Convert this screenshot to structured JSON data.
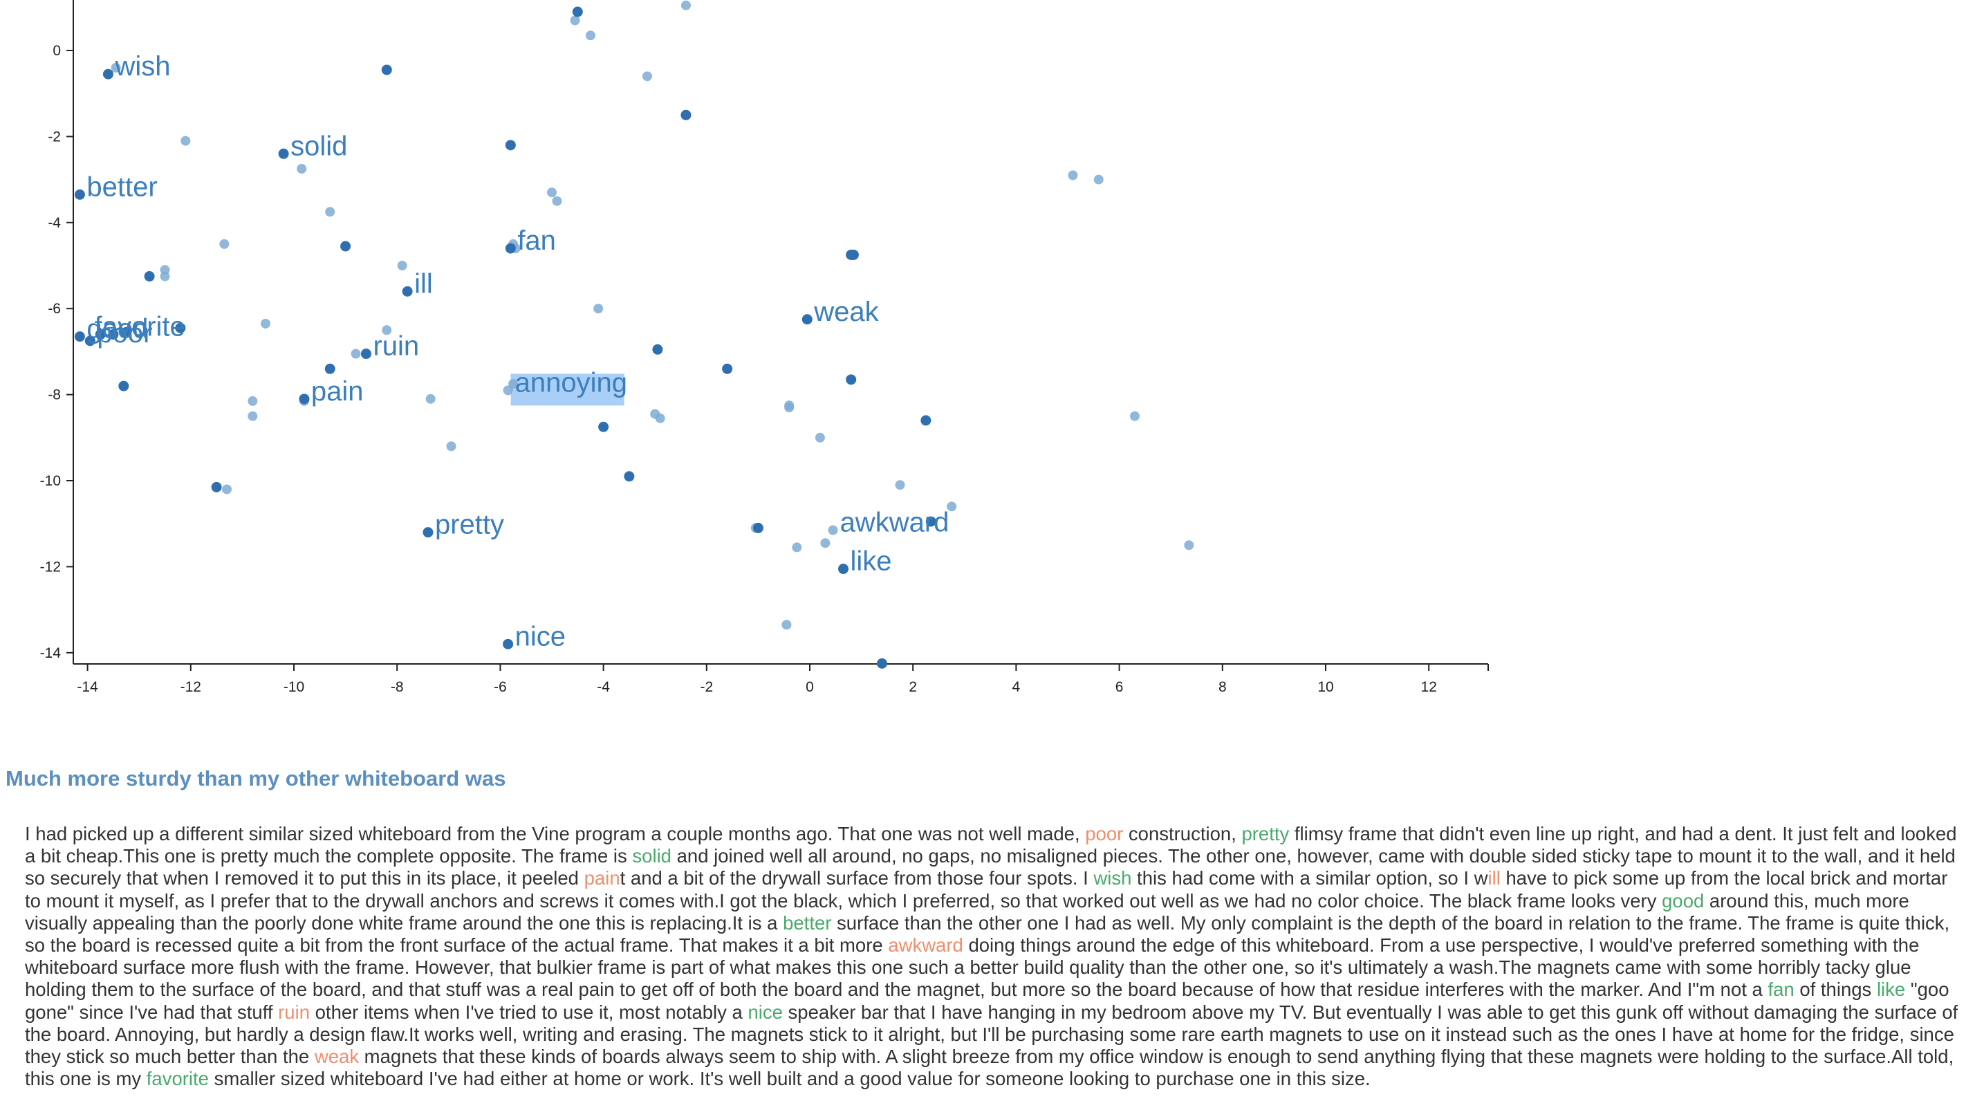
{
  "colors": {
    "point_dark": "#2f6fb0",
    "point_light": "#7eaad3",
    "label": "#3b7ebc",
    "highlight": "#a9cff6",
    "positive_word": "#4aa96b",
    "negative_word": "#f08e6c",
    "title": "#5b8fbf"
  },
  "chart_data": {
    "type": "scatter",
    "xlim": [
      -14.2,
      13.0
    ],
    "ylim": [
      -14.3,
      1.2
    ],
    "x_ticks": [
      -14,
      -12,
      -10,
      -8,
      -6,
      -4,
      -2,
      0,
      2,
      4,
      6,
      8,
      10,
      12
    ],
    "y_ticks": [
      0,
      -2,
      -4,
      -6,
      -8,
      -10,
      -12,
      -14
    ],
    "x_tick_labels": [
      "-14",
      "-12",
      "-10",
      "-8",
      "-6",
      "-4",
      "-2",
      "0",
      "2",
      "4",
      "6",
      "8",
      "10",
      "12"
    ],
    "y_tick_labels": [
      "0",
      "-2",
      "-4",
      "-6",
      "-8",
      "-10",
      "-12",
      "-14"
    ],
    "grid": false,
    "points_dark": [
      [
        -13.6,
        -0.55
      ],
      [
        -10.2,
        -2.4
      ],
      [
        -14.15,
        -3.35
      ],
      [
        -5.8,
        -2.2
      ],
      [
        -2.4,
        -1.5
      ],
      [
        -9.0,
        -4.55
      ],
      [
        -12.8,
        -5.25
      ],
      [
        -12.2,
        -6.45
      ],
      [
        -7.8,
        -5.6
      ],
      [
        -5.8,
        -4.6
      ],
      [
        -0.05,
        -6.25
      ],
      [
        0.85,
        -4.75
      ],
      [
        -9.3,
        -7.4
      ],
      [
        -8.6,
        -7.05
      ],
      [
        -9.8,
        -8.1
      ],
      [
        -13.3,
        -7.8
      ],
      [
        -7.4,
        -11.2
      ],
      [
        -11.5,
        -10.15
      ],
      [
        -3.5,
        -9.9
      ],
      [
        -4.0,
        -8.75
      ],
      [
        -2.95,
        -6.95
      ],
      [
        -1.6,
        -7.4
      ],
      [
        0.8,
        -7.65
      ],
      [
        2.25,
        -8.6
      ],
      [
        -1.0,
        -11.1
      ],
      [
        2.35,
        -10.95
      ],
      [
        0.65,
        -12.05
      ],
      [
        -5.85,
        -13.8
      ],
      [
        1.4,
        -14.25
      ],
      [
        -8.2,
        -0.45
      ],
      [
        -14.15,
        -6.65
      ],
      [
        -13.95,
        -6.75
      ],
      [
        -13.75,
        -6.6
      ],
      [
        -13.5,
        -6.6
      ],
      [
        -13.25,
        -6.55
      ],
      [
        -4.5,
        0.9
      ],
      [
        0.8,
        -4.75
      ]
    ],
    "points_light": [
      [
        -4.55,
        0.7
      ],
      [
        -4.25,
        0.35
      ],
      [
        -2.4,
        1.05
      ],
      [
        -3.15,
        -0.6
      ],
      [
        -13.45,
        -0.4
      ],
      [
        -12.1,
        -2.1
      ],
      [
        -9.85,
        -2.75
      ],
      [
        -5.0,
        -3.3
      ],
      [
        -4.9,
        -3.5
      ],
      [
        -9.3,
        -3.75
      ],
      [
        -11.35,
        -4.5
      ],
      [
        -12.5,
        -5.1
      ],
      [
        -12.5,
        -5.25
      ],
      [
        -7.9,
        -5.0
      ],
      [
        -5.75,
        -4.5
      ],
      [
        -4.1,
        -6.0
      ],
      [
        -10.55,
        -6.35
      ],
      [
        -8.2,
        -6.5
      ],
      [
        -8.8,
        -7.05
      ],
      [
        -10.8,
        -8.15
      ],
      [
        -10.8,
        -8.5
      ],
      [
        -9.8,
        -8.15
      ],
      [
        -7.35,
        -8.1
      ],
      [
        -5.85,
        -7.9
      ],
      [
        -5.75,
        -7.75
      ],
      [
        -3.0,
        -8.45
      ],
      [
        -2.9,
        -8.55
      ],
      [
        -0.4,
        -8.25
      ],
      [
        -0.4,
        -8.3
      ],
      [
        0.2,
        -9.0
      ],
      [
        6.3,
        -8.5
      ],
      [
        -6.95,
        -9.2
      ],
      [
        -11.3,
        -10.2
      ],
      [
        1.75,
        -10.1
      ],
      [
        2.75,
        -10.6
      ],
      [
        -1.05,
        -11.1
      ],
      [
        -0.25,
        -11.55
      ],
      [
        0.3,
        -11.45
      ],
      [
        0.45,
        -11.15
      ],
      [
        7.35,
        -11.5
      ],
      [
        -0.45,
        -13.35
      ],
      [
        5.1,
        -2.9
      ],
      [
        5.6,
        -3.0
      ],
      [
        -5.7,
        -4.6
      ]
    ],
    "labels": [
      {
        "text": "wish",
        "x": -13.6,
        "y": -0.55
      },
      {
        "text": "solid",
        "x": -10.2,
        "y": -2.4
      },
      {
        "text": "better",
        "x": -14.15,
        "y": -3.35
      },
      {
        "text": "fan",
        "x": -5.8,
        "y": -4.6
      },
      {
        "text": "ill",
        "x": -7.8,
        "y": -5.6
      },
      {
        "text": "weak",
        "x": -0.05,
        "y": -6.25
      },
      {
        "text": "good",
        "x": -14.15,
        "y": -6.65
      },
      {
        "text": "favorite",
        "x": -14.0,
        "y": -6.6
      },
      {
        "text": "poor",
        "x": -13.95,
        "y": -6.75
      },
      {
        "text": "ruin",
        "x": -8.6,
        "y": -7.05
      },
      {
        "text": "pain",
        "x": -9.8,
        "y": -8.1
      },
      {
        "text": "annoying",
        "x": -5.85,
        "y": -7.9,
        "highlighted": true
      },
      {
        "text": "pretty",
        "x": -7.4,
        "y": -11.2
      },
      {
        "text": "awkward",
        "x": 0.45,
        "y": -11.15
      },
      {
        "text": "like",
        "x": 0.65,
        "y": -12.05
      },
      {
        "text": "nice",
        "x": -5.85,
        "y": -13.8
      }
    ]
  },
  "review": {
    "title": "Much more sturdy than my other whiteboard was",
    "segments": [
      {
        "t": "I had picked up a different similar sized whiteboard from the Vine program a couple months ago. That one was not well made, "
      },
      {
        "t": "poor",
        "s": "neg"
      },
      {
        "t": " construction, "
      },
      {
        "t": "pretty",
        "s": "pos"
      },
      {
        "t": " flimsy frame that didn't even line up right, and had a dent. It just felt and looked a bit cheap.This one is pretty much the complete opposite. The frame is "
      },
      {
        "t": "solid",
        "s": "pos"
      },
      {
        "t": " and joined well all around, no gaps, no misaligned pieces. The other one, however, came with double sided sticky tape to mount it to the wall, and it held so securely that when I removed it to put this in its place, it peeled "
      },
      {
        "t": "pain",
        "s": "neg"
      },
      {
        "t": "t and a bit of the drywall surface from those four spots. I "
      },
      {
        "t": "wish",
        "s": "pos"
      },
      {
        "t": " this had come with a similar option, so I w"
      },
      {
        "t": "ill",
        "s": "neg"
      },
      {
        "t": " have to pick some up from the local brick and mortar to mount it myself, as I prefer that to the drywall anchors and screws it comes with.I got the black, which I preferred, so that worked out well as we had no color choice. The black frame looks very "
      },
      {
        "t": "good",
        "s": "pos"
      },
      {
        "t": " around this, much more visually appealing than the poorly done white frame around the one this is replacing.It is a "
      },
      {
        "t": "better",
        "s": "pos"
      },
      {
        "t": " surface than the other one I had as well. My only complaint is the depth of the board in relation to the frame. The frame is quite thick, so the board is recessed quite a bit from the front surface of the actual frame. That makes it a bit more "
      },
      {
        "t": "awkward",
        "s": "neg"
      },
      {
        "t": " doing things around the edge of this whiteboard. From a use perspective, I would've preferred something with the whiteboard surface more flush with the frame. However, that bulkier frame is part of what makes this one such a better build quality than the other one, so it's ultimately a wash.The magnets came with some horribly tacky glue holding them to the surface of the board, and that stuff was a real pain to get off of both the board and the magnet, but more so the board because of how that residue interferes with the marker. And I\"m not a "
      },
      {
        "t": "fan",
        "s": "pos"
      },
      {
        "t": " of things "
      },
      {
        "t": "like",
        "s": "pos"
      },
      {
        "t": " \"goo gone\" since I've had that stuff "
      },
      {
        "t": "ruin",
        "s": "neg"
      },
      {
        "t": " other items when I've tried to use it, most notably a "
      },
      {
        "t": "nice",
        "s": "pos"
      },
      {
        "t": " speaker bar that I have hanging in my bedroom above my TV. But eventually I was able to get this gunk off without damaging the surface of the board. Annoying, but hardly a design flaw.It works well, writing and erasing. The magnets stick to it alright, but I'll be purchasing some rare earth magnets to use on it instead such as the ones I have at home for the fridge, since they stick so much better than the "
      },
      {
        "t": "weak",
        "s": "neg"
      },
      {
        "t": " magnets that these kinds of boards always seem to ship with. A slight breeze from my office window is enough to send anything flying that these magnets were holding to the surface.All told, this one is my "
      },
      {
        "t": "favorite",
        "s": "pos"
      },
      {
        "t": " smaller sized whiteboard I've had either at home or work. It's well built and a good value for someone looking to purchase one in this size."
      }
    ]
  }
}
